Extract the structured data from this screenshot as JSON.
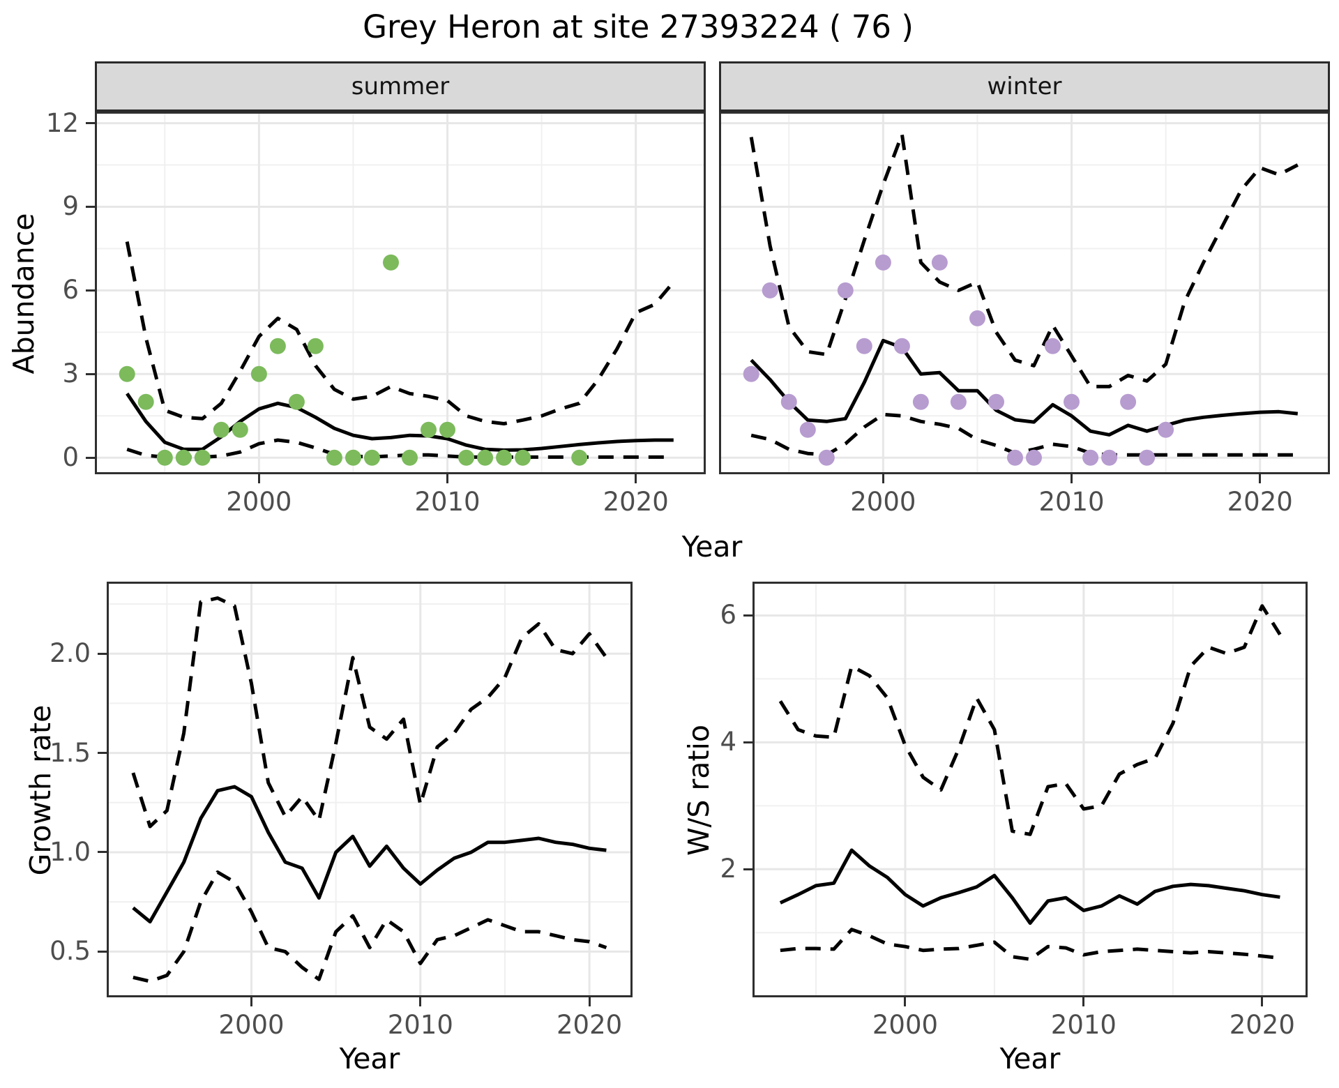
{
  "title": "Grey Heron at site 27393224 ( 76 )",
  "colors": {
    "summer_points": "#7CBA5C",
    "winter_points": "#B79CD0",
    "line": "#000000",
    "grid_major": "#E7E7E7",
    "grid_minor": "#F0F0F0",
    "panel_border": "#2F2F2F",
    "strip_background": "#D9D9D9",
    "tick_text": "#4D4D4D"
  },
  "axis_titles": {
    "abundance": "Abundance",
    "year_top": "Year",
    "growth": "Growth rate",
    "year_growth": "Year",
    "ws": "W/S ratio",
    "year_ws": "Year"
  },
  "chart_data": [
    {
      "id": "summer",
      "type": "line",
      "strip_label": "summer",
      "xlabel": "Year",
      "ylabel": "Abundance",
      "xlim": [
        1991.4,
        2023.6
      ],
      "ylim": [
        -0.52,
        12.34
      ],
      "x_ticks": [
        2000,
        2010,
        2020
      ],
      "x_tick_labels": [
        "2000",
        "2010",
        "2020"
      ],
      "x_minor": [
        1995,
        2005,
        2015
      ],
      "y_ticks": [
        0,
        3,
        6,
        9,
        12
      ],
      "y_tick_labels": [
        "0",
        "3",
        "6",
        "9",
        "12"
      ],
      "y_minor": [
        1.5,
        4.5,
        7.5,
        10.5
      ],
      "show_y_tick_labels": true,
      "years": [
        1993,
        1994,
        1995,
        1996,
        1997,
        1998,
        1999,
        2000,
        2001,
        2002,
        2003,
        2004,
        2005,
        2006,
        2007,
        2008,
        2009,
        2010,
        2011,
        2012,
        2013,
        2014,
        2015,
        2016,
        2017,
        2018,
        2019,
        2020,
        2021,
        2022
      ],
      "series": [
        {
          "name": "lower_ci",
          "style": "dashed",
          "values": [
            0.3,
            0.08,
            0.02,
            0.02,
            0.02,
            0.06,
            0.2,
            0.5,
            0.63,
            0.55,
            0.35,
            0.12,
            0.05,
            0.03,
            0.06,
            0.1,
            0.1,
            0.06,
            0.02,
            0.02,
            0.02,
            0.02,
            0.02,
            0.02,
            0.02,
            0.02,
            0.02,
            0.02,
            0.02,
            0.02
          ]
        },
        {
          "name": "upper_ci",
          "style": "dashed",
          "values": [
            7.75,
            4.3,
            1.7,
            1.45,
            1.4,
            1.95,
            3.1,
            4.35,
            5.0,
            4.6,
            3.3,
            2.45,
            2.1,
            2.2,
            2.55,
            2.3,
            2.2,
            2.05,
            1.5,
            1.3,
            1.22,
            1.35,
            1.5,
            1.75,
            1.95,
            2.8,
            3.9,
            5.2,
            5.5,
            6.3
          ]
        },
        {
          "name": "fit",
          "style": "solid",
          "values": [
            2.3,
            1.3,
            0.55,
            0.3,
            0.3,
            0.75,
            1.3,
            1.75,
            1.95,
            1.8,
            1.45,
            1.05,
            0.8,
            0.68,
            0.72,
            0.8,
            0.78,
            0.68,
            0.45,
            0.3,
            0.27,
            0.28,
            0.33,
            0.4,
            0.47,
            0.53,
            0.58,
            0.61,
            0.63,
            0.63
          ]
        }
      ],
      "points": {
        "name": "observed_summer",
        "color": "#7CBA5C",
        "years": [
          1993,
          1994,
          1995,
          1996,
          1997,
          1998,
          1999,
          2000,
          2001,
          2002,
          2003,
          2004,
          2005,
          2006,
          2007,
          2008,
          2009,
          2010,
          2011,
          2012,
          2013,
          2014,
          2017
        ],
        "values": [
          3,
          2,
          0,
          0,
          0,
          1,
          1,
          3,
          4,
          2,
          4,
          0,
          0,
          0,
          7,
          0,
          1,
          1,
          0,
          0,
          0,
          0,
          0
        ]
      }
    },
    {
      "id": "winter",
      "type": "line",
      "strip_label": "winter",
      "xlabel": "Year",
      "ylabel": "Abundance",
      "xlim": [
        1991.4,
        2023.6
      ],
      "ylim": [
        -0.52,
        12.34
      ],
      "x_ticks": [
        2000,
        2010,
        2020
      ],
      "x_tick_labels": [
        "2000",
        "2010",
        "2020"
      ],
      "x_minor": [
        1995,
        2005,
        2015
      ],
      "y_ticks": [
        0,
        3,
        6,
        9,
        12
      ],
      "y_tick_labels": [
        "0",
        "3",
        "6",
        "9",
        "12"
      ],
      "y_minor": [
        1.5,
        4.5,
        7.5,
        10.5
      ],
      "show_y_tick_labels": false,
      "years": [
        1993,
        1994,
        1995,
        1996,
        1997,
        1998,
        1999,
        2000,
        2001,
        2002,
        2003,
        2004,
        2005,
        2006,
        2007,
        2008,
        2009,
        2010,
        2011,
        2012,
        2013,
        2014,
        2015,
        2016,
        2017,
        2018,
        2019,
        2020,
        2021,
        2022
      ],
      "series": [
        {
          "name": "lower_ci",
          "style": "dashed",
          "values": [
            0.8,
            0.65,
            0.3,
            0.15,
            0.1,
            0.5,
            1.1,
            1.55,
            1.5,
            1.3,
            1.2,
            1.05,
            0.64,
            0.44,
            0.16,
            0.3,
            0.48,
            0.4,
            0.16,
            0.1,
            0.1,
            0.1,
            0.1,
            0.1,
            0.1,
            0.1,
            0.1,
            0.1,
            0.1,
            0.1
          ]
        },
        {
          "name": "upper_ci",
          "style": "dashed",
          "values": [
            11.5,
            7.6,
            4.7,
            3.8,
            3.7,
            5.7,
            7.8,
            9.8,
            11.6,
            7.0,
            6.3,
            6.0,
            6.3,
            4.5,
            3.5,
            3.3,
            4.75,
            3.65,
            2.55,
            2.55,
            2.95,
            2.75,
            3.35,
            5.6,
            7.0,
            8.3,
            9.6,
            10.4,
            10.15,
            10.5
          ]
        },
        {
          "name": "fit",
          "style": "solid",
          "values": [
            3.5,
            2.8,
            2.0,
            1.35,
            1.3,
            1.4,
            2.7,
            4.2,
            3.95,
            3.0,
            3.05,
            2.4,
            2.4,
            1.7,
            1.36,
            1.28,
            1.9,
            1.5,
            0.95,
            0.82,
            1.16,
            0.95,
            1.16,
            1.35,
            1.45,
            1.52,
            1.58,
            1.63,
            1.65,
            1.58
          ]
        }
      ],
      "points": {
        "name": "observed_winter",
        "color": "#B79CD0",
        "years": [
          1993,
          1994,
          1995,
          1996,
          1997,
          1998,
          1999,
          2000,
          2001,
          2002,
          2003,
          2004,
          2005,
          2006,
          2007,
          2008,
          2009,
          2010,
          2011,
          2012,
          2013,
          2014,
          2015
        ],
        "values": [
          3,
          6,
          2,
          1,
          0,
          6,
          4,
          7,
          4,
          2,
          7,
          2,
          5,
          2,
          0,
          0,
          4,
          2,
          0,
          0,
          2,
          0,
          1
        ]
      }
    },
    {
      "id": "growth",
      "type": "line",
      "strip_label": "",
      "xlabel": "Year",
      "ylabel": "Growth rate",
      "xlim": [
        1991.56,
        2022.43
      ],
      "ylim": [
        0.28,
        2.352
      ],
      "x_ticks": [
        2000,
        2010,
        2020
      ],
      "x_tick_labels": [
        "2000",
        "2010",
        "2020"
      ],
      "x_minor": [
        1995,
        2005,
        2015
      ],
      "y_ticks": [
        0.5,
        1.0,
        1.5,
        2.0
      ],
      "y_tick_labels": [
        "0.5",
        "1.0",
        "1.5",
        "2.0"
      ],
      "y_minor": [
        0.75,
        1.25,
        1.75,
        2.25
      ],
      "show_y_tick_labels": true,
      "years": [
        1993,
        1994,
        1995,
        1996,
        1997,
        1998,
        1999,
        2000,
        2001,
        2002,
        2003,
        2004,
        2005,
        2006,
        2007,
        2008,
        2009,
        2010,
        2011,
        2012,
        2013,
        2014,
        2015,
        2016,
        2017,
        2018,
        2019,
        2020,
        2021
      ],
      "series": [
        {
          "name": "lower_ci",
          "style": "dashed",
          "values": [
            0.37,
            0.35,
            0.38,
            0.5,
            0.75,
            0.9,
            0.85,
            0.7,
            0.52,
            0.5,
            0.42,
            0.36,
            0.6,
            0.68,
            0.52,
            0.66,
            0.6,
            0.44,
            0.56,
            0.58,
            0.62,
            0.66,
            0.63,
            0.6,
            0.6,
            0.58,
            0.56,
            0.55,
            0.52
          ]
        },
        {
          "name": "upper_ci",
          "style": "dashed",
          "values": [
            1.4,
            1.13,
            1.21,
            1.6,
            2.26,
            2.28,
            2.24,
            1.85,
            1.35,
            1.18,
            1.28,
            1.16,
            1.55,
            1.98,
            1.63,
            1.57,
            1.67,
            1.24,
            1.53,
            1.6,
            1.72,
            1.78,
            1.88,
            2.08,
            2.15,
            2.02,
            2.0,
            2.1,
            1.98
          ]
        },
        {
          "name": "fit",
          "style": "solid",
          "values": [
            0.72,
            0.65,
            0.8,
            0.95,
            1.17,
            1.31,
            1.33,
            1.28,
            1.1,
            0.95,
            0.92,
            0.77,
            1.0,
            1.08,
            0.93,
            1.03,
            0.92,
            0.84,
            0.91,
            0.97,
            1.0,
            1.05,
            1.05,
            1.06,
            1.07,
            1.05,
            1.04,
            1.02,
            1.01
          ]
        }
      ],
      "points": null
    },
    {
      "id": "ws",
      "type": "line",
      "strip_label": "",
      "xlabel": "Year",
      "ylabel": "W/S ratio",
      "xlim": [
        1991.56,
        2022.43
      ],
      "ylim": [
        0.013,
        6.5
      ],
      "x_ticks": [
        2000,
        2010,
        2020
      ],
      "x_tick_labels": [
        "2000",
        "2010",
        "2020"
      ],
      "x_minor": [
        1995,
        2005,
        2015
      ],
      "y_ticks": [
        2,
        4,
        6
      ],
      "y_tick_labels": [
        "2",
        "4",
        "6"
      ],
      "y_minor": [
        1,
        3,
        5
      ],
      "show_y_tick_labels": true,
      "years": [
        1993,
        1994,
        1995,
        1996,
        1997,
        1998,
        1999,
        2000,
        2001,
        2002,
        2003,
        2004,
        2005,
        2006,
        2007,
        2008,
        2009,
        2010,
        2011,
        2012,
        2013,
        2014,
        2015,
        2016,
        2017,
        2018,
        2019,
        2020,
        2021
      ],
      "series": [
        {
          "name": "lower_ci",
          "style": "dashed",
          "values": [
            0.72,
            0.75,
            0.75,
            0.74,
            1.05,
            0.95,
            0.82,
            0.78,
            0.72,
            0.74,
            0.75,
            0.8,
            0.85,
            0.62,
            0.58,
            0.78,
            0.76,
            0.65,
            0.7,
            0.72,
            0.74,
            0.72,
            0.7,
            0.68,
            0.7,
            0.68,
            0.66,
            0.63,
            0.6
          ]
        },
        {
          "name": "upper_ci",
          "style": "dashed",
          "values": [
            4.65,
            4.2,
            4.1,
            4.08,
            5.2,
            5.05,
            4.7,
            3.95,
            3.45,
            3.25,
            3.9,
            4.7,
            4.2,
            2.6,
            2.55,
            3.3,
            3.35,
            2.95,
            3.0,
            3.5,
            3.65,
            3.75,
            4.3,
            5.2,
            5.5,
            5.4,
            5.5,
            6.15,
            5.7
          ]
        },
        {
          "name": "fit",
          "style": "solid",
          "values": [
            1.47,
            1.6,
            1.74,
            1.78,
            2.3,
            2.05,
            1.87,
            1.6,
            1.42,
            1.55,
            1.63,
            1.72,
            1.9,
            1.55,
            1.15,
            1.5,
            1.55,
            1.35,
            1.42,
            1.58,
            1.45,
            1.65,
            1.73,
            1.76,
            1.74,
            1.7,
            1.66,
            1.6,
            1.56
          ]
        }
      ],
      "points": null
    }
  ]
}
